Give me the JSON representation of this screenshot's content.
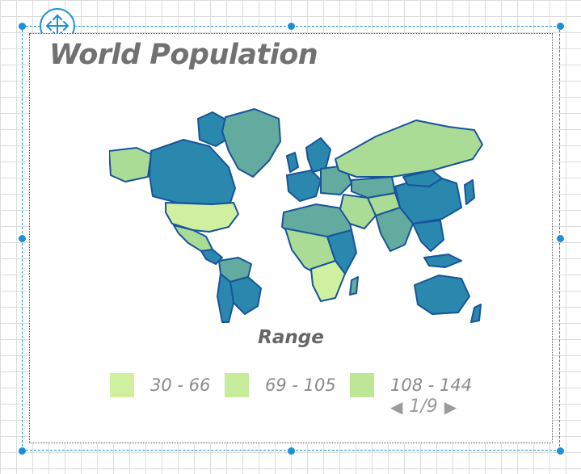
{
  "chart": {
    "title": "World Population",
    "legend_title": "Range",
    "legend_items": [
      {
        "label": "30 - 66",
        "color": "#d0f0a0"
      },
      {
        "label": "69 - 105",
        "color": "#c6ec9c"
      },
      {
        "label": "108 - 144",
        "color": "#bde797"
      }
    ],
    "pager": {
      "label": "1/9",
      "prev_icon": "triangle-left-icon",
      "next_icon": "triangle-right-icon"
    }
  },
  "palette": {
    "selection": "#1d8fd6",
    "country_border": "#16549c",
    "high": "#2a87ad",
    "medium": "#63ab9e",
    "low": "#abdc96",
    "lowest": "#d0f0a0"
  },
  "designer": {
    "move_icon": "move-arrows-icon"
  }
}
